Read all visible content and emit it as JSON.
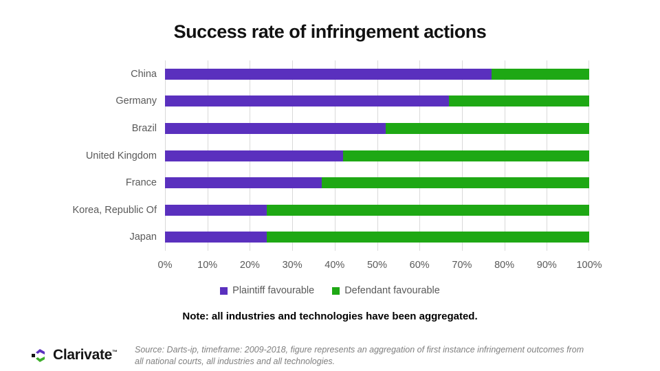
{
  "chart_data": {
    "type": "bar",
    "orientation": "horizontal",
    "stacked": true,
    "title": "Success rate of infringement actions",
    "categories": [
      "China",
      "Germany",
      "Brazil",
      "United Kingdom",
      "France",
      "Korea, Republic Of",
      "Japan"
    ],
    "series": [
      {
        "name": "Plaintiff favourable",
        "color": "#5a30be",
        "values": [
          77,
          67,
          52,
          42,
          37,
          24,
          24
        ]
      },
      {
        "name": "Defendant favourable",
        "color": "#1ea814",
        "values": [
          23,
          33,
          48,
          58,
          63,
          76,
          76
        ]
      }
    ],
    "x_ticks": [
      "0%",
      "10%",
      "20%",
      "30%",
      "40%",
      "50%",
      "60%",
      "70%",
      "80%",
      "90%",
      "100%"
    ],
    "xlim": [
      0,
      100
    ],
    "grid": true,
    "gridline_color": "#d9d9d9",
    "legend_position": "bottom",
    "unit": "percent"
  },
  "note": "Note: all industries and technologies have been aggregated.",
  "source": "Source: Darts-ip, timeframe: 2009-2018, figure represents an aggregation of first instance infringement outcomes from all national courts, all industries and all technologies.",
  "logo": {
    "wordmark": "Clarivate",
    "trademark": "™"
  },
  "colors": {
    "plaintiff": "#5a30be",
    "defendant": "#1ea814",
    "label_gray": "#595959",
    "source_gray": "#7f7f7f"
  }
}
